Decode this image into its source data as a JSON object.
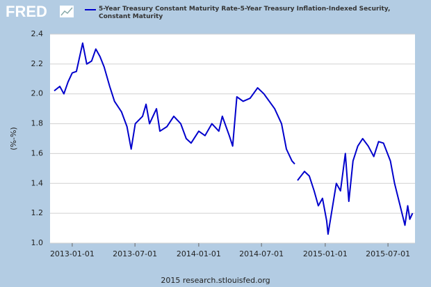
{
  "logo": "FRED",
  "chart_data": {
    "type": "line",
    "series": [
      {
        "name": "5-Year Treasury Constant Maturity Rate-5-Year Treasury Inflation-Indexed Security, Constant Maturity",
        "color": "#0000cc",
        "x": [
          "2012-11-10",
          "2012-11-26",
          "2012-12-08",
          "2012-12-20",
          "2013-01-01",
          "2013-01-13",
          "2013-01-31",
          "2013-02-12",
          "2013-02-26",
          "2013-03-10",
          "2013-03-22",
          "2013-04-03",
          "2013-04-19",
          "2013-05-03",
          "2013-05-23",
          "2013-06-08",
          "2013-06-20",
          "2013-07-02",
          "2013-07-23",
          "2013-08-02",
          "2013-08-12",
          "2013-09-01",
          "2013-09-11",
          "2013-10-01",
          "2013-10-21",
          "2013-11-10",
          "2013-11-26",
          "2013-12-10",
          "2014-01-01",
          "2014-01-19",
          "2014-02-08",
          "2014-02-28",
          "2014-03-10",
          "2014-03-30",
          "2014-04-09",
          "2014-04-21",
          "2014-05-09",
          "2014-05-29",
          "2014-06-20",
          "2014-07-08",
          "2014-08-08",
          "2014-08-28",
          "2014-09-11",
          "2014-09-27",
          "2014-10-05",
          "2014-10-09",
          "2014-10-13",
          "2014-11-02",
          "2014-11-16",
          "2014-11-30",
          "2014-12-12",
          "2014-12-24",
          "2015-01-05",
          "2015-01-09",
          "2015-01-19",
          "2015-02-02",
          "2015-02-14",
          "2015-02-28",
          "2015-03-10",
          "2015-03-22",
          "2015-04-05",
          "2015-04-19",
          "2015-05-05",
          "2015-05-21",
          "2015-06-04",
          "2015-06-18",
          "2015-07-08",
          "2015-07-20",
          "2015-08-05",
          "2015-08-19",
          "2015-08-27",
          "2015-09-02",
          "2015-09-10"
        ],
        "values": [
          2.02,
          2.05,
          2.0,
          2.08,
          2.14,
          2.15,
          2.34,
          2.2,
          2.22,
          2.3,
          2.25,
          2.18,
          2.05,
          1.95,
          1.88,
          1.78,
          1.63,
          1.8,
          1.85,
          1.93,
          1.8,
          1.9,
          1.75,
          1.78,
          1.85,
          1.8,
          1.7,
          1.67,
          1.75,
          1.72,
          1.8,
          1.75,
          1.85,
          1.72,
          1.65,
          1.98,
          1.95,
          1.97,
          2.04,
          2.0,
          1.9,
          1.8,
          1.63,
          1.55,
          1.53,
          null,
          1.42,
          1.48,
          1.45,
          1.35,
          1.25,
          1.3,
          1.15,
          1.06,
          1.2,
          1.4,
          1.35,
          1.6,
          1.28,
          1.55,
          1.65,
          1.7,
          1.65,
          1.58,
          1.68,
          1.67,
          1.55,
          1.4,
          1.25,
          1.12,
          1.25,
          1.16,
          1.2
        ]
      }
    ],
    "ylabel": "(%-%)",
    "xlim": [
      "2012-10-29",
      "2015-09-17"
    ],
    "xticks": [
      "2013-01-01",
      "2013-07-01",
      "2014-01-01",
      "2014-07-01",
      "2015-01-01",
      "2015-07-01"
    ],
    "ylim": [
      1.0,
      2.4
    ],
    "yticks": [
      {
        "value": 1.0,
        "label": "1.0"
      },
      1.2,
      1.4,
      1.6,
      1.8,
      {
        "value": 2.0,
        "label": "2.0"
      },
      2.2,
      2.4
    ],
    "grid": true
  },
  "source": "2015 research.stlouisfed.org"
}
